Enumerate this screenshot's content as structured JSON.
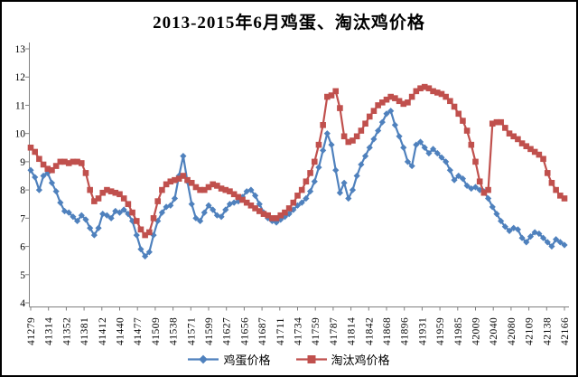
{
  "chart_data": {
    "type": "line",
    "title": "2013-2015年6月鸡蛋、淘汰鸡价格",
    "xlabel": "",
    "ylabel": "",
    "ylim": [
      4,
      13
    ],
    "y_ticks": [
      4,
      5,
      6,
      7,
      8,
      9,
      10,
      11,
      12,
      13
    ],
    "grid": false,
    "legend_position": "bottom",
    "x_tick_labels": [
      "41279",
      "41314",
      "41352",
      "41381",
      "41412",
      "41440",
      "41477",
      "41509",
      "41538",
      "41571",
      "41599",
      "41627",
      "41656",
      "41687",
      "41711",
      "41734",
      "41759",
      "41787",
      "41814",
      "41842",
      "41868",
      "41896",
      "41931",
      "41959",
      "41985",
      "42009",
      "42040",
      "42080",
      "42109",
      "42138",
      "42166"
    ],
    "series": [
      {
        "name": "鸡蛋价格",
        "color": "#4F81BD",
        "marker": "diamond",
        "values": [
          8.7,
          8.45,
          8.0,
          8.5,
          8.6,
          8.25,
          7.95,
          7.55,
          7.25,
          7.2,
          7.05,
          6.9,
          7.1,
          6.95,
          6.65,
          6.4,
          6.65,
          7.15,
          7.1,
          7.0,
          7.25,
          7.2,
          7.3,
          7.15,
          6.9,
          6.4,
          5.9,
          5.65,
          5.8,
          6.4,
          6.9,
          7.2,
          7.4,
          7.45,
          7.7,
          8.5,
          9.2,
          8.3,
          7.5,
          7.0,
          6.9,
          7.2,
          7.45,
          7.3,
          7.1,
          7.05,
          7.3,
          7.5,
          7.55,
          7.6,
          7.75,
          7.95,
          8.0,
          7.8,
          7.5,
          7.2,
          7.0,
          6.9,
          6.85,
          6.95,
          7.05,
          7.15,
          7.3,
          7.45,
          7.55,
          7.7,
          7.95,
          8.3,
          8.8,
          9.4,
          10.0,
          9.6,
          8.7,
          7.9,
          8.25,
          7.7,
          8.0,
          8.5,
          8.9,
          9.2,
          9.5,
          9.8,
          10.1,
          10.4,
          10.7,
          10.8,
          10.3,
          9.9,
          9.5,
          9.0,
          8.85,
          9.6,
          9.7,
          9.5,
          9.3,
          9.45,
          9.3,
          9.15,
          9.0,
          8.7,
          8.35,
          8.5,
          8.4,
          8.15,
          8.05,
          8.1,
          8.0,
          7.95,
          7.7,
          7.4,
          7.15,
          6.9,
          6.7,
          6.55,
          6.65,
          6.6,
          6.3,
          6.15,
          6.35,
          6.5,
          6.45,
          6.3,
          6.15,
          6.0,
          6.25,
          6.15,
          6.05
        ]
      },
      {
        "name": "淘汰鸡价格",
        "color": "#C0504D",
        "marker": "square",
        "values": [
          9.5,
          9.35,
          9.1,
          8.9,
          8.75,
          8.7,
          8.85,
          9.0,
          9.0,
          8.95,
          9.0,
          9.0,
          8.95,
          8.6,
          8.0,
          7.6,
          7.7,
          7.9,
          8.0,
          7.95,
          7.9,
          7.85,
          7.7,
          7.5,
          7.2,
          6.9,
          6.6,
          6.4,
          6.5,
          7.0,
          7.6,
          8.0,
          8.2,
          8.3,
          8.35,
          8.4,
          8.5,
          8.35,
          8.25,
          8.1,
          8.0,
          8.0,
          8.1,
          8.2,
          8.15,
          8.05,
          8.0,
          7.95,
          7.85,
          7.75,
          7.65,
          7.55,
          7.45,
          7.35,
          7.25,
          7.15,
          7.1,
          7.0,
          7.0,
          7.1,
          7.2,
          7.35,
          7.55,
          7.8,
          8.0,
          8.3,
          8.6,
          9.0,
          9.6,
          10.3,
          11.3,
          11.35,
          11.5,
          10.9,
          9.9,
          9.7,
          9.75,
          9.9,
          10.1,
          10.35,
          10.6,
          10.8,
          11.0,
          11.1,
          11.2,
          11.3,
          11.25,
          11.15,
          11.05,
          11.1,
          11.3,
          11.5,
          11.6,
          11.65,
          11.6,
          11.5,
          11.45,
          11.4,
          11.3,
          11.15,
          10.95,
          10.7,
          10.45,
          10.1,
          9.6,
          9.0,
          8.3,
          7.9,
          8.0,
          10.35,
          10.4,
          10.4,
          10.2,
          10.0,
          9.9,
          9.8,
          9.65,
          9.55,
          9.45,
          9.35,
          9.25,
          9.1,
          8.6,
          8.25,
          8.0,
          7.8,
          7.7
        ]
      }
    ]
  },
  "legend": {
    "egg_label": "鸡蛋价格",
    "chicken_label": "淘汰鸡价格"
  },
  "colors": {
    "egg_series": "#4F81BD",
    "chicken_series": "#C0504D",
    "axis": "#808080",
    "text": "#000000",
    "background": "#FFFFFF"
  }
}
